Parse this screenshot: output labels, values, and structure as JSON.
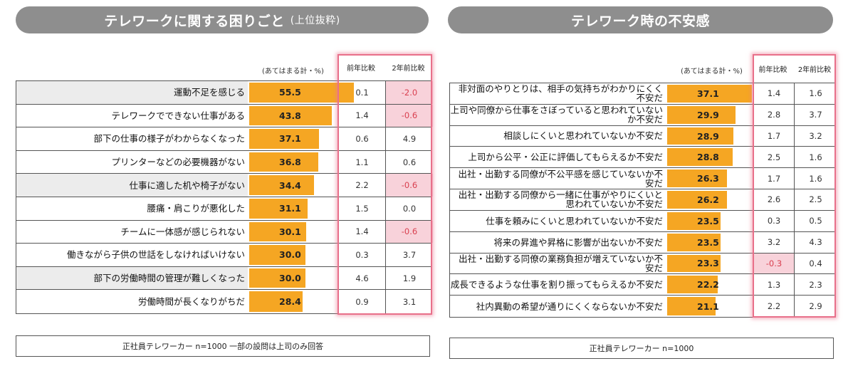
{
  "left": {
    "title": "テレワークに関する困りごと",
    "title_sub": "(上位抜粋)",
    "note": "(あてはまる計・%)",
    "col1": "前年比較",
    "col2": "2年前比較",
    "footer": "正社員テレワーカー n=1000 一部の設問は上司のみ回答",
    "max": 55.5
  },
  "right": {
    "title": "テレワーク時の不安感",
    "note": "(あてはまる計・%)",
    "col1": "前年比較",
    "col2": "2年前比較",
    "footer": "正社員テレワーカー n=1000",
    "max": 37.1
  },
  "chart_data": [
    {
      "type": "bar",
      "title": "テレワークに関する困りごと(上位抜粋)",
      "unit": "(あてはまる計・%)",
      "categories": [
        "運動不足を感じる",
        "テレワークでできない仕事がある",
        "部下の仕事の様子がわからなくなった",
        "プリンターなどの必要機器がない",
        "仕事に適した机や椅子がない",
        "腰痛・肩こりが悪化した",
        "チームに一体感が感じられない",
        "働きながら子供の世話をしなければいけない",
        "部下の労働時間の管理が難しくなった",
        "労働時間が長くなりがちだ"
      ],
      "values": [
        "55.5",
        "43.8",
        "37.1",
        "36.8",
        "34.4",
        "31.1",
        "30.1",
        "30.0",
        "30.0",
        "28.4"
      ],
      "table_columns": [
        "前年比較",
        "2年前比較"
      ],
      "prev_year": [
        "0.1",
        "1.4",
        "0.6",
        "1.1",
        "2.2",
        "1.5",
        "1.4",
        "0.3",
        "4.6",
        "0.9"
      ],
      "two_years": [
        "-2.0",
        "-0.6",
        "4.9",
        "0.6",
        "-0.6",
        "0.0",
        "-0.6",
        "3.7",
        "1.9",
        "3.1"
      ],
      "footer": "正社員テレワーカー n=1000 一部の設問は上司のみ回答"
    },
    {
      "type": "bar",
      "title": "テレワーク時の不安感",
      "unit": "(あてはまる計・%)",
      "categories": [
        "非対面のやりとりは、相手の気持ちがわかりにくく不安だ",
        "上司や同僚から仕事をさぼっていると思われていないか不安だ",
        "相談しにくいと思われていないか不安だ",
        "上司から公平・公正に評価してもらえるか不安だ",
        "出社・出勤する同僚が不公平感を感じていないか不安だ",
        "出社・出勤する同僚から一緒に仕事がやりにくいと思われていないか不安だ",
        "仕事を頼みにくいと思われていないか不安だ",
        "将来の昇進や昇格に影響が出ないか不安だ",
        "出社・出勤する同僚の業務負担が増えていないか不安だ",
        "成長できるような仕事を割り振ってもらえるか不安だ",
        "社内異動の希望が通りにくくならないか不安だ"
      ],
      "values": [
        "37.1",
        "29.9",
        "28.9",
        "28.8",
        "26.3",
        "26.2",
        "23.5",
        "23.5",
        "23.3",
        "22.2",
        "21.1"
      ],
      "table_columns": [
        "前年比較",
        "2年前比較"
      ],
      "prev_year": [
        "1.4",
        "2.8",
        "1.7",
        "2.5",
        "1.7",
        "2.6",
        "0.3",
        "3.2",
        "-0.3",
        "1.3",
        "2.2"
      ],
      "two_years": [
        "1.6",
        "3.7",
        "3.2",
        "1.6",
        "1.6",
        "2.5",
        "0.5",
        "4.3",
        "0.4",
        "2.3",
        "2.9"
      ],
      "footer": "正社員テレワーカー n=1000"
    }
  ],
  "colors": {
    "bar": "#f5a623",
    "header": "#8e8e8e",
    "negative": "#f8d2da",
    "highlight": "#e8708a"
  }
}
